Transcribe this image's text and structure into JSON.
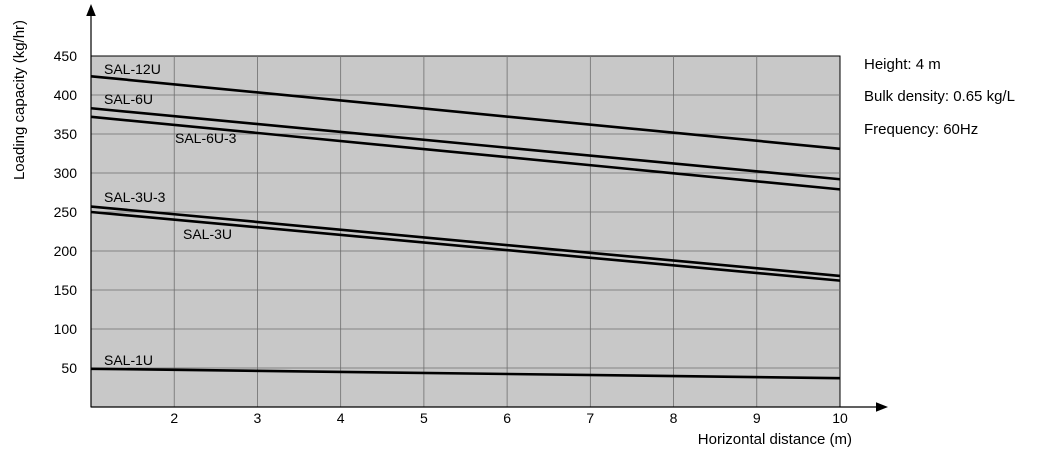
{
  "chart_data": {
    "type": "line",
    "title": "",
    "xlabel": "Horizontal distance (m)",
    "ylabel": "Loading capacity (kg/hr)",
    "xlim": [
      1,
      10
    ],
    "ylim": [
      0,
      450
    ],
    "xticks": [
      2,
      3,
      4,
      5,
      6,
      7,
      8,
      9,
      10
    ],
    "yticks": [
      50,
      100,
      150,
      200,
      250,
      300,
      350,
      400,
      450
    ],
    "grid": true,
    "background": "#c8c8c8",
    "line_color": "#000000",
    "series": [
      {
        "name": "SAL-12U",
        "x": [
          1,
          10
        ],
        "y": [
          424,
          331
        ]
      },
      {
        "name": "SAL-6U",
        "x": [
          1,
          10
        ],
        "y": [
          383,
          292
        ]
      },
      {
        "name": "SAL-6U-3",
        "x": [
          1,
          10
        ],
        "y": [
          372,
          279
        ]
      },
      {
        "name": "SAL-3U-3",
        "x": [
          1,
          10
        ],
        "y": [
          257,
          168
        ]
      },
      {
        "name": "SAL-3U",
        "x": [
          1,
          10
        ],
        "y": [
          250,
          162
        ]
      },
      {
        "name": "SAL-1U",
        "x": [
          1,
          10
        ],
        "y": [
          49,
          37
        ]
      }
    ],
    "notes": [
      "Height: 4 m",
      "Bulk density: 0.65 kg/L",
      "Frequency: 60Hz"
    ]
  }
}
